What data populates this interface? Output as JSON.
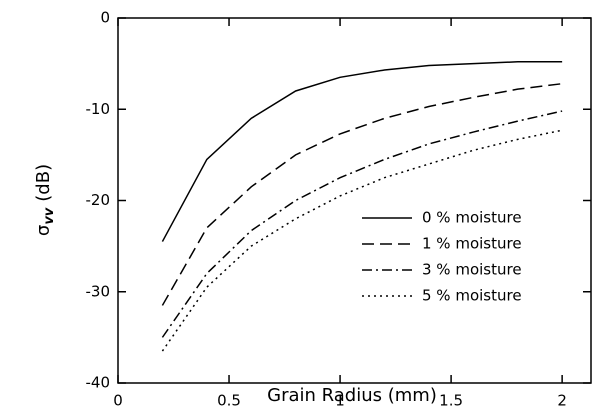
{
  "chart_data": {
    "type": "line",
    "x_label": "Grain Radius (mm)",
    "y_label": [
      "σ",
      "vv",
      "(dB)"
    ],
    "x": [
      0.2,
      0.4,
      0.6,
      0.8,
      1.0,
      1.2,
      1.4,
      1.6,
      1.8,
      2.0
    ],
    "series": [
      {
        "name": "0 % moisture",
        "color": "#000000",
        "dash": "solid",
        "values": [
          -24.5,
          -15.5,
          -11,
          -8,
          -6.5,
          -5.7,
          -5.2,
          -5,
          -4.8,
          -4.8
        ]
      },
      {
        "name": "1 % moisture",
        "color": "#000000",
        "dash": "dashed",
        "values": [
          -31.5,
          -23,
          -18.5,
          -15,
          -12.7,
          -11,
          -9.7,
          -8.7,
          -7.8,
          -7.2
        ]
      },
      {
        "name": "3 % moisture",
        "color": "#000000",
        "dash": "dashdot",
        "values": [
          -35,
          -28,
          -23.3,
          -20,
          -17.5,
          -15.5,
          -13.8,
          -12.5,
          -11.3,
          -10.2
        ]
      },
      {
        "name": "5 % moisture",
        "color": "#000000",
        "dash": "dotted",
        "values": [
          -36.5,
          -29.5,
          -25,
          -22,
          -19.5,
          -17.5,
          -16,
          -14.5,
          -13.3,
          -12.3
        ]
      }
    ],
    "xlim": [
      0,
      2.13
    ],
    "xticks": [
      0,
      0.5,
      1,
      1.5,
      2
    ],
    "ylim": [
      -40,
      0
    ],
    "yticks": [
      -40,
      -30,
      -20,
      -10,
      0
    ],
    "legend": "lower right",
    "grid": false
  }
}
